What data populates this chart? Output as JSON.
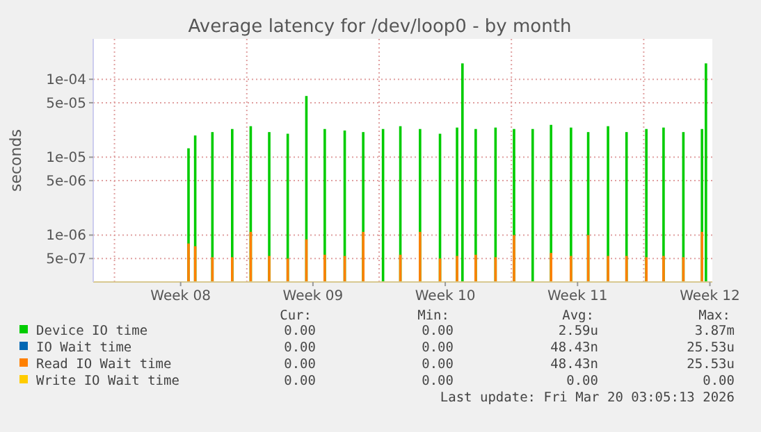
{
  "chart_data": {
    "type": "bar",
    "title": "Average latency for /dev/loop0 - by month",
    "ylabel": "seconds",
    "log": "y",
    "grid": true,
    "legend": "bottom",
    "xlim": [
      "2026-02-15T09:00",
      "2026-03-20T03:05"
    ],
    "xticks": [
      {
        "value": "2026-02-20",
        "label": "Week 08"
      },
      {
        "value": "2026-02-27",
        "label": "Week 09"
      },
      {
        "value": "2026-03-06",
        "label": "Week 10"
      },
      {
        "value": "2026-03-13",
        "label": "Week 11"
      },
      {
        "value": "2026-03-20",
        "label": "Week 12"
      }
    ],
    "ylim": [
      2.5e-07,
      0.00033
    ],
    "yticks": [
      {
        "value": 0.0001,
        "label": "1e-04"
      },
      {
        "value": 5e-05,
        "label": "5e-05"
      },
      {
        "value": 1e-05,
        "label": "1e-05"
      },
      {
        "value": 5e-06,
        "label": "5e-06"
      },
      {
        "value": 1e-06,
        "label": "1e-06"
      },
      {
        "value": 5e-07,
        "label": "5e-07"
      }
    ],
    "series": [
      {
        "name": "Device IO time",
        "color": "#00cc00",
        "x": [
          "2026-02-20T10:00",
          "2026-02-20T18:30",
          "2026-02-21T16:20",
          "2026-02-22T17:30",
          "2026-02-23T17:00",
          "2026-02-24T16:30",
          "2026-02-25T16:00",
          "2026-02-26T15:40",
          "2026-02-27T15:00",
          "2026-02-28T16:20",
          "2026-03-01T15:50",
          "2026-03-02T17:00",
          "2026-03-03T15:00",
          "2026-03-04T16:00",
          "2026-03-05T17:20",
          "2026-03-06T15:00",
          "2026-03-06T21:50",
          "2026-03-07T14:40",
          "2026-03-08T15:50",
          "2026-03-09T15:20",
          "2026-03-10T15:00",
          "2026-03-11T14:20",
          "2026-03-12T15:40",
          "2026-03-13T13:30",
          "2026-03-14T14:40",
          "2026-03-15T14:10",
          "2026-03-16T15:20",
          "2026-03-17T13:10",
          "2026-03-18T14:20",
          "2026-03-19T14:00",
          "2026-03-19T19:00"
        ],
        "values": [
          1.3e-05,
          1.9e-05,
          2.1e-05,
          2.3e-05,
          2.5e-05,
          2.1e-05,
          2e-05,
          6.1e-05,
          2.3e-05,
          2.2e-05,
          2.1e-05,
          2.3e-05,
          2.5e-05,
          2.3e-05,
          2e-05,
          2.4e-05,
          0.00016,
          2.3e-05,
          2.4e-05,
          2.3e-05,
          2.3e-05,
          2.6e-05,
          2.4e-05,
          2.1e-05,
          2.5e-05,
          2.1e-05,
          2.3e-05,
          2.4e-05,
          2.1e-05,
          2.3e-05,
          0.00016
        ]
      },
      {
        "name": "IO Wait time",
        "color": "#0066b3"
      },
      {
        "name": "Read IO Wait time",
        "color": "#ff8000",
        "x": [
          "2026-02-20T10:00",
          "2026-02-20T18:30",
          "2026-02-21T16:20",
          "2026-02-22T17:30",
          "2026-02-23T17:00",
          "2026-02-24T16:30",
          "2026-02-25T16:00",
          "2026-02-26T15:40",
          "2026-02-27T15:00",
          "2026-02-28T16:20",
          "2026-03-01T15:50",
          "2026-03-03T15:00",
          "2026-03-04T16:00",
          "2026-03-05T17:20",
          "2026-03-06T15:00",
          "2026-03-07T14:40",
          "2026-03-08T15:50",
          "2026-03-09T15:20",
          "2026-03-11T14:20",
          "2026-03-12T15:40",
          "2026-03-13T13:30",
          "2026-03-14T14:40",
          "2026-03-15T14:10",
          "2026-03-16T15:20",
          "2026-03-17T13:10",
          "2026-03-18T14:20",
          "2026-03-19T14:00"
        ],
        "values": [
          7.8e-07,
          7.2e-07,
          5.2e-07,
          5.2e-07,
          1.1e-06,
          5.4e-07,
          5e-07,
          8.8e-07,
          5.6e-07,
          5.4e-07,
          1.1e-06,
          5.6e-07,
          1.1e-06,
          5e-07,
          5.4e-07,
          5.6e-07,
          5.2e-07,
          1e-06,
          5.9e-07,
          5.4e-07,
          1e-06,
          5.4e-07,
          5.4e-07,
          5.2e-07,
          5.4e-07,
          5.2e-07,
          1.1e-06
        ]
      },
      {
        "name": "Write IO Wait time",
        "color": "#ffcc00"
      }
    ],
    "annotations": [
      "Cur:",
      "Min:",
      "Avg:",
      "Max:",
      "0.00",
      "0.00",
      "2.59u",
      "3.87m",
      "0.00",
      "0.00",
      "48.43n",
      "25.53u",
      "0.00",
      "0.00",
      "48.43n",
      "25.53u",
      "0.00",
      "0.00",
      "0.00",
      "0.00",
      "Last update: Fri Mar 20 03:05:13 2026"
    ]
  }
}
